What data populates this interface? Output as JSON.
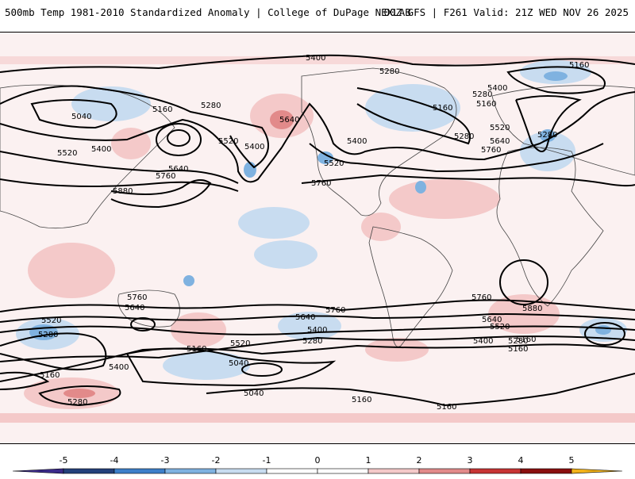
{
  "header": {
    "title": "500mb Temp 1981-2010 Standardized Anomaly | College of DuPage NEXLAB",
    "run_info": "00Z GFS | F261 Valid: 21Z WED NOV 26 2025"
  },
  "contour_labels": {
    "c5400_a": "5400",
    "c5280_a": "5280",
    "c5160_a": "5160",
    "c5040_a": "5040",
    "c5520_a": "5520",
    "c5400_b": "5400",
    "c5160_b": "5160",
    "c5280_b": "5280",
    "c5640_a": "5640",
    "c5520_b": "5520",
    "c5400_c": "5400",
    "c5640_b": "5640",
    "c5760_a": "5760",
    "c5880_a": "5880",
    "c5760_b": "5760",
    "c5400_d": "5400",
    "c5520_c": "5520",
    "c5280_c": "5280",
    "c5160_c": "5160",
    "c5400_e": "5400",
    "c5280_d": "5280",
    "c5520_d": "5520",
    "c5640_c": "5640",
    "c5760_c": "5760",
    "c5280_e": "5280",
    "c5160_d": "5160",
    "s5760_a": "5760",
    "s5640_a": "5640",
    "s5520_a": "5520",
    "s5280_a": "5280",
    "s5160_a": "5160",
    "s5400_a": "5400",
    "s5280_b": "5280",
    "s5160_b": "5160",
    "s5520_b": "5520",
    "s5040_a": "5040",
    "s5040_b": "5040",
    "s5760_b": "5760",
    "s5640_b": "5640",
    "s5400_b": "5400",
    "s5280_c": "5280",
    "s5160_c": "5160",
    "s5760_c": "5760",
    "s5880_a": "5880",
    "s5640_c": "5640",
    "s5520_c": "5520",
    "s5400_c": "5400",
    "s5280_d": "5280",
    "s5160_d": "5160",
    "s5160_e": "5160",
    "s5160_f": "5160"
  },
  "colorbar": {
    "ticks": [
      "-5",
      "-4",
      "-3",
      "-2",
      "-1",
      "0",
      "1",
      "2",
      "3",
      "4",
      "5"
    ],
    "colors": [
      "#3b2a8a",
      "#24407a",
      "#3d7fc9",
      "#7fb2e0",
      "#c8dcf0",
      "#ffffff",
      "#ffffff",
      "#f4c9c9",
      "#e28a8a",
      "#c73434",
      "#8a0f0f",
      "#f2b21a"
    ]
  }
}
